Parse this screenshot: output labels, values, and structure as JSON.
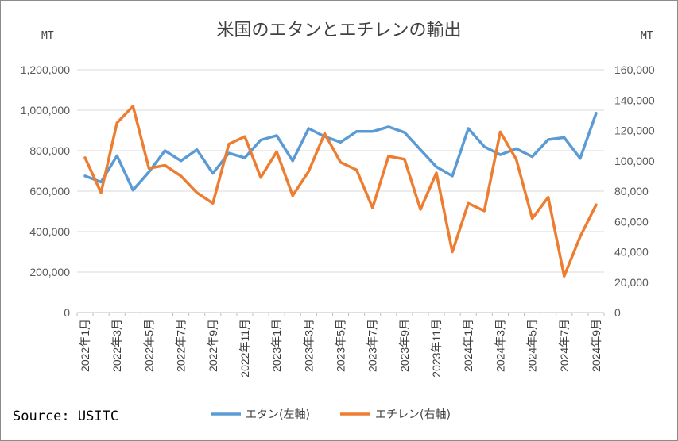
{
  "title": "米国のエタンとエチレンの輸出",
  "unit_left": "MT",
  "unit_right": "MT",
  "source": "Source: USITC",
  "chart_data": {
    "type": "line",
    "title": "米国のエタンとエチレンの輸出",
    "x": [
      "2022年1月",
      "2022年2月",
      "2022年3月",
      "2022年4月",
      "2022年5月",
      "2022年6月",
      "2022年7月",
      "2022年8月",
      "2022年9月",
      "2022年10月",
      "2022年11月",
      "2022年12月",
      "2023年1月",
      "2023年2月",
      "2023年3月",
      "2023年4月",
      "2023年5月",
      "2023年6月",
      "2023年7月",
      "2023年8月",
      "2023年9月",
      "2023年10月",
      "2023年11月",
      "2023年12月",
      "2024年1月",
      "2024年2月",
      "2024年3月",
      "2024年4月",
      "2024年5月",
      "2024年6月",
      "2024年7月",
      "2024年8月",
      "2024年9月"
    ],
    "x_tick_labels": [
      "2022年1月",
      "2022年3月",
      "2022年5月",
      "2022年7月",
      "2022年9月",
      "2022年11月",
      "2023年1月",
      "2023年3月",
      "2023年5月",
      "2023年7月",
      "2023年9月",
      "2023年11月",
      "2024年1月",
      "2024年3月",
      "2024年5月",
      "2024年7月",
      "2024年9月"
    ],
    "y_left": {
      "label": "MT",
      "min": 0,
      "max": 1200000,
      "ticks": [
        "0",
        "200,000",
        "400,000",
        "600,000",
        "800,000",
        "1,000,000",
        "1,200,000"
      ]
    },
    "y_right": {
      "label": "MT",
      "min": 0,
      "max": 160000,
      "ticks": [
        "0",
        "20,000",
        "40,000",
        "60,000",
        "80,000",
        "100,000",
        "120,000",
        "140,000",
        "160,000"
      ]
    },
    "grid": true,
    "legend_position": "bottom",
    "series": [
      {
        "name": "エタン(左軸)",
        "axis": "left",
        "color": "#5b9bd5",
        "values": [
          675000,
          645000,
          775000,
          605000,
          695000,
          800000,
          750000,
          805000,
          688000,
          788000,
          765000,
          853000,
          875000,
          750000,
          910000,
          870000,
          842000,
          895000,
          895000,
          918000,
          890000,
          805000,
          720000,
          675000,
          910000,
          820000,
          780000,
          810000,
          770000,
          855000,
          865000,
          762000,
          985000
        ]
      },
      {
        "name": "エチレン(右軸)",
        "axis": "right",
        "color": "#ed7d31",
        "values": [
          102000,
          79000,
          125000,
          136000,
          95000,
          97000,
          90000,
          79000,
          72000,
          111000,
          116000,
          89000,
          106000,
          77000,
          93000,
          118000,
          99000,
          94000,
          69000,
          103000,
          101000,
          68000,
          92000,
          40000,
          72000,
          67000,
          119000,
          101000,
          62000,
          76000,
          24000,
          50000,
          71000
        ]
      }
    ]
  }
}
